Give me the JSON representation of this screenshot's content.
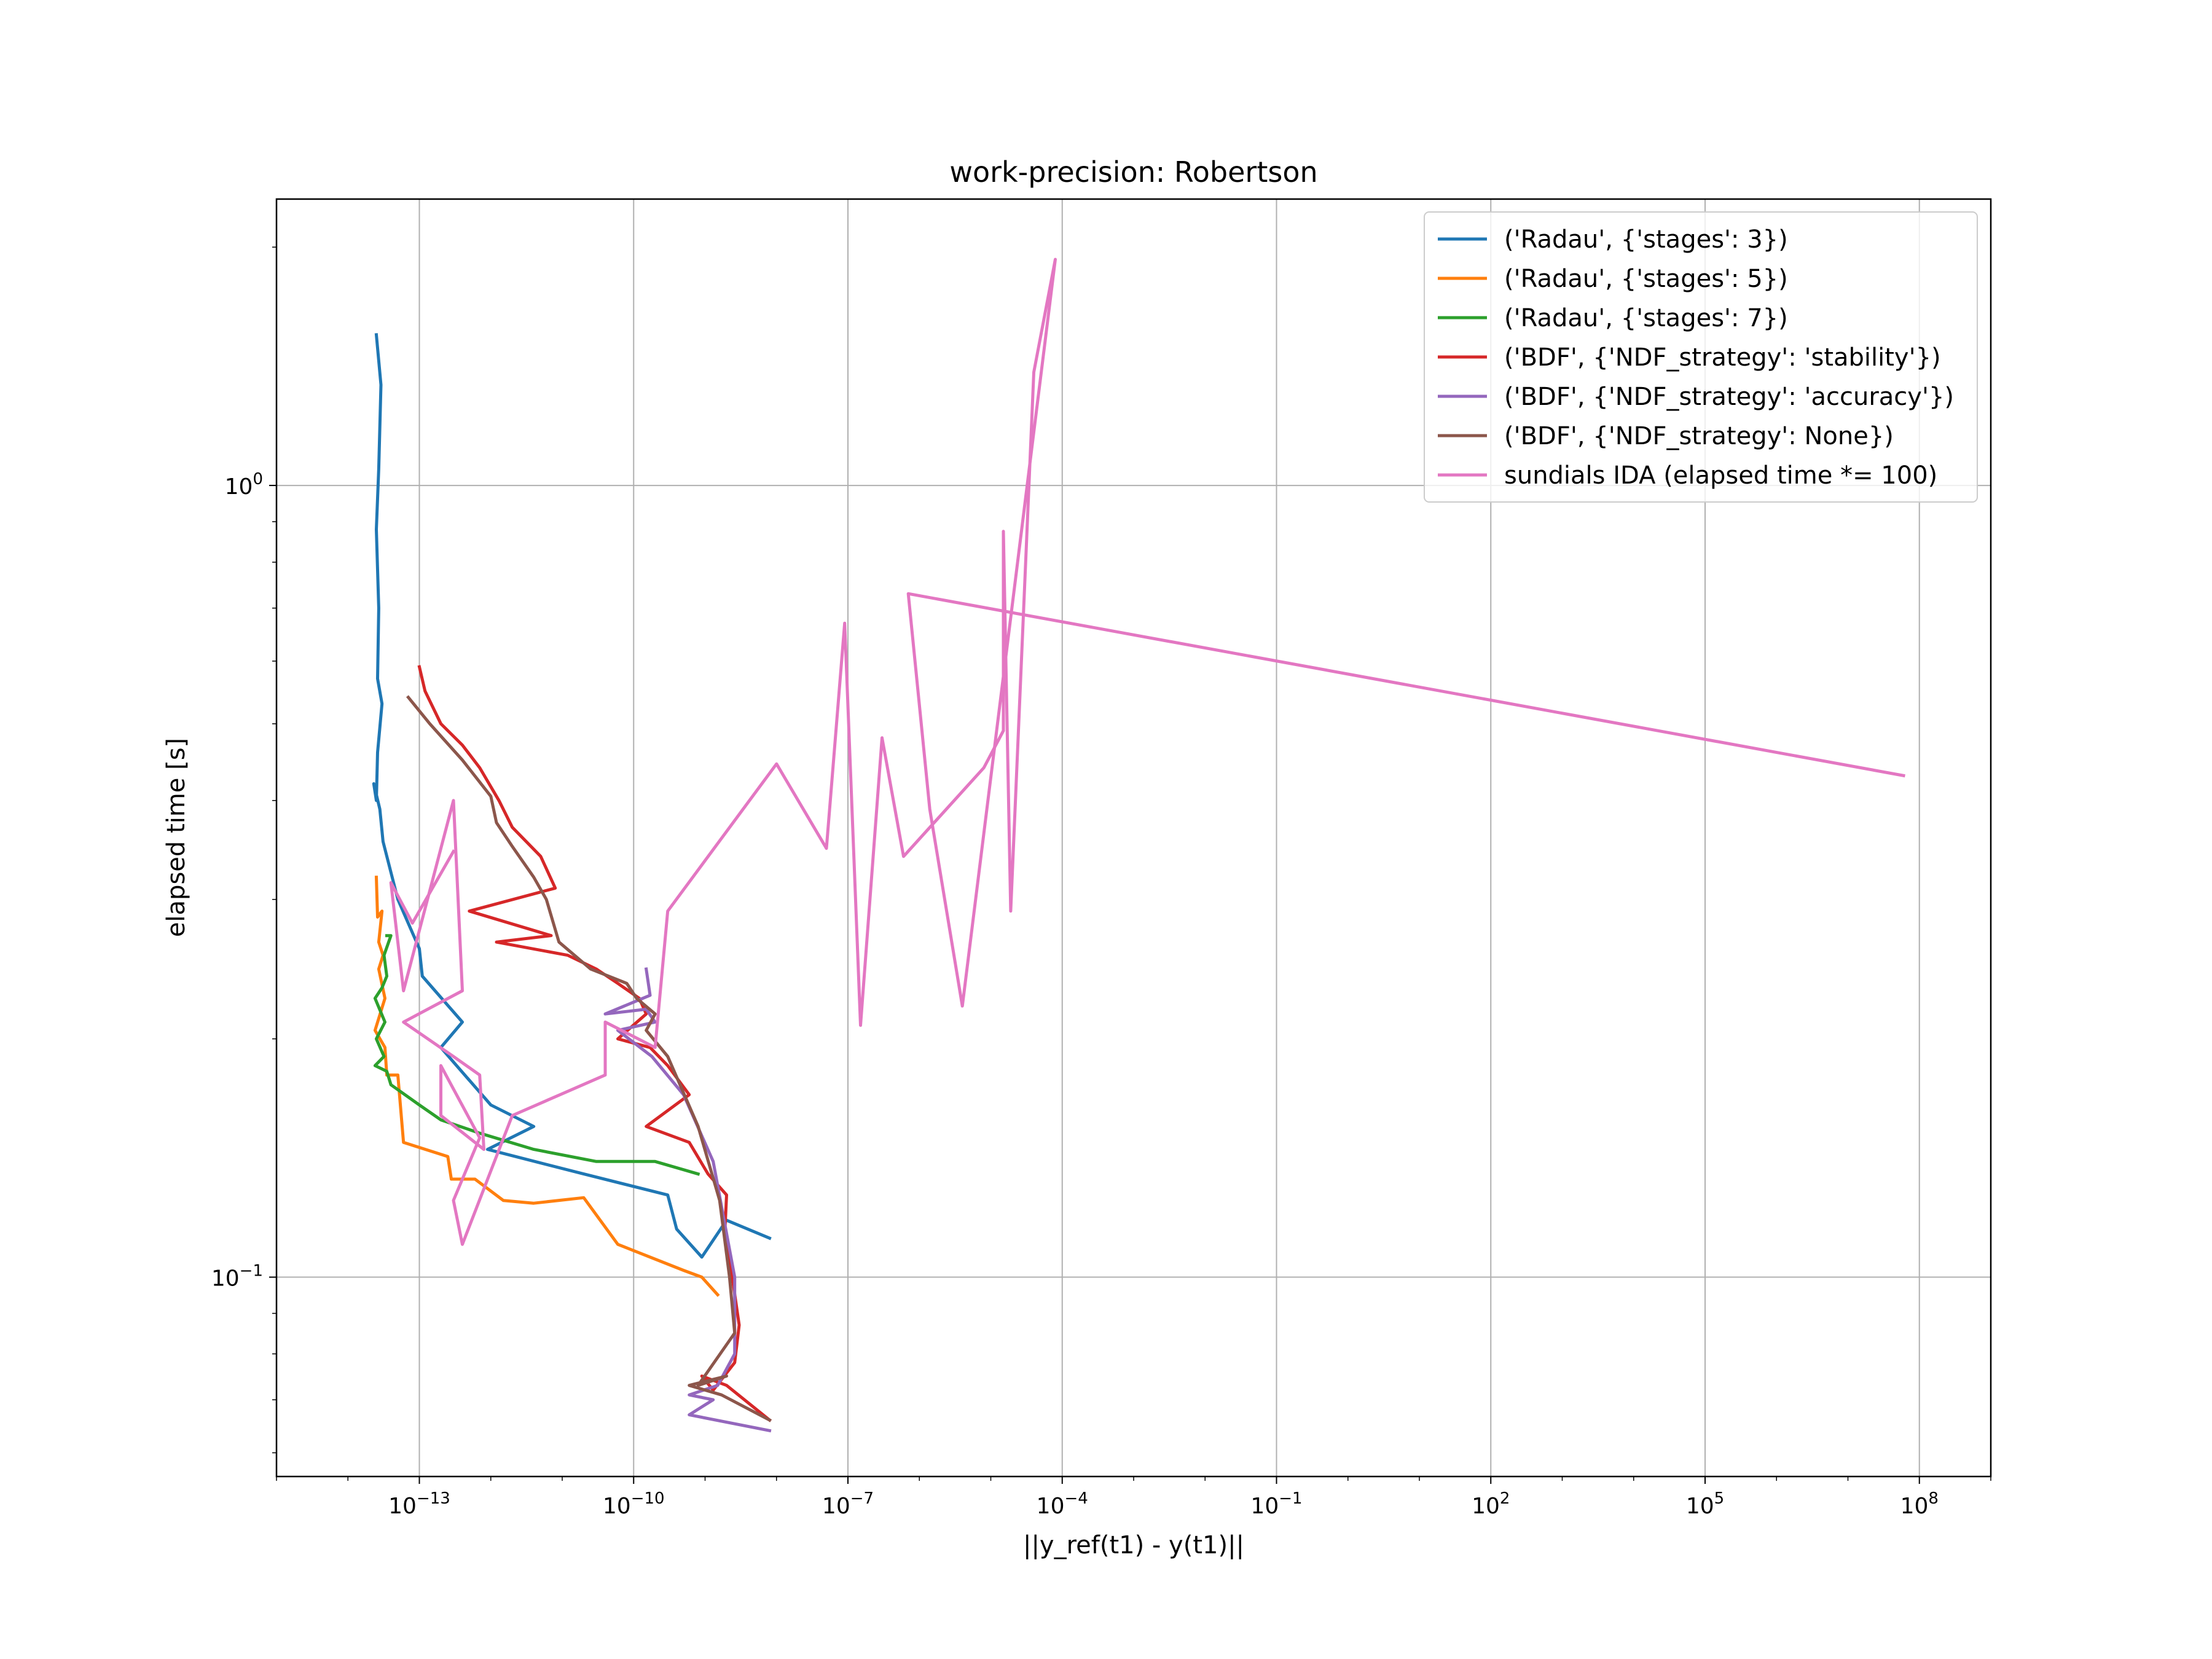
{
  "chart_data": {
    "type": "line",
    "title": "work-precision: Robertson",
    "xlabel": "||y_ref(t1) - y(t1)||",
    "ylabel": "elapsed time [s]",
    "xscale": "log",
    "yscale": "log",
    "xlim": [
      1e-15,
      1000000000.0
    ],
    "ylim": [
      0.056,
      2.3
    ],
    "grid": true,
    "legend_position": "top-right",
    "xticks": [
      {
        "value": 1e-13,
        "base": "10",
        "exp": "−13"
      },
      {
        "value": 1e-10,
        "base": "10",
        "exp": "−10"
      },
      {
        "value": 1e-07,
        "base": "10",
        "exp": "−7"
      },
      {
        "value": 0.0001,
        "base": "10",
        "exp": "−4"
      },
      {
        "value": 0.1,
        "base": "10",
        "exp": "−1"
      },
      {
        "value": 100.0,
        "base": "10",
        "exp": "2"
      },
      {
        "value": 100000.0,
        "base": "10",
        "exp": "5"
      },
      {
        "value": 100000000.0,
        "base": "10",
        "exp": "8"
      }
    ],
    "yticks": [
      {
        "value": 1,
        "base": "10",
        "exp": "0"
      },
      {
        "value": 0.1,
        "base": "10",
        "exp": "−1"
      }
    ],
    "series": [
      {
        "name": "('Radau', {'stages': 3})",
        "color": "#1f77b4",
        "points": [
          [
            2.5e-14,
            1.55
          ],
          [
            2.9e-14,
            1.34
          ],
          [
            2.7e-14,
            1.05
          ],
          [
            2.5e-14,
            0.88
          ],
          [
            2.7e-14,
            0.7
          ],
          [
            2.6e-14,
            0.57
          ],
          [
            3e-14,
            0.53
          ],
          [
            2.6e-14,
            0.46
          ],
          [
            2.5e-14,
            0.4
          ],
          [
            2.3e-14,
            0.42
          ],
          [
            2.8e-14,
            0.39
          ],
          [
            3.1e-14,
            0.355
          ],
          [
            5e-14,
            0.3
          ],
          [
            1e-13,
            0.26
          ],
          [
            1.1e-13,
            0.24
          ],
          [
            4e-13,
            0.21
          ],
          [
            2e-13,
            0.195
          ],
          [
            1e-12,
            0.165
          ],
          [
            4e-12,
            0.155
          ],
          [
            9e-13,
            0.145
          ],
          [
            2e-11,
            0.135
          ],
          [
            3e-10,
            0.127
          ],
          [
            4e-10,
            0.115
          ],
          [
            9e-10,
            0.106
          ],
          [
            2e-09,
            0.118
          ],
          [
            8e-09,
            0.112
          ]
        ]
      },
      {
        "name": "('Radau', {'stages': 5})",
        "color": "#ff7f0e",
        "points": [
          [
            2.5e-14,
            0.32
          ],
          [
            2.6e-14,
            0.285
          ],
          [
            3e-14,
            0.29
          ],
          [
            2.7e-14,
            0.265
          ],
          [
            3.1e-14,
            0.255
          ],
          [
            2.7e-14,
            0.245
          ],
          [
            3.3e-14,
            0.225
          ],
          [
            2.4e-14,
            0.205
          ],
          [
            3.3e-14,
            0.195
          ],
          [
            3.5e-14,
            0.18
          ],
          [
            5e-14,
            0.18
          ],
          [
            6e-14,
            0.148
          ],
          [
            2.5e-13,
            0.142
          ],
          [
            2.8e-13,
            0.133
          ],
          [
            6e-13,
            0.133
          ],
          [
            1.5e-12,
            0.125
          ],
          [
            4e-12,
            0.124
          ],
          [
            2e-11,
            0.126
          ],
          [
            6e-11,
            0.11
          ],
          [
            5e-10,
            0.102
          ],
          [
            9e-10,
            0.1
          ],
          [
            1.5e-09,
            0.095
          ]
        ]
      },
      {
        "name": "('Radau', {'stages': 7})",
        "color": "#2ca02c",
        "points": [
          [
            3.5e-14,
            0.27
          ],
          [
            4e-14,
            0.27
          ],
          [
            3.2e-14,
            0.255
          ],
          [
            3.5e-14,
            0.24
          ],
          [
            3e-14,
            0.232
          ],
          [
            2.4e-14,
            0.225
          ],
          [
            3.3e-14,
            0.21
          ],
          [
            2.5e-14,
            0.2
          ],
          [
            3.2e-14,
            0.19
          ],
          [
            2.4e-14,
            0.185
          ],
          [
            3.5e-14,
            0.182
          ],
          [
            4e-14,
            0.175
          ],
          [
            1e-13,
            0.165
          ],
          [
            2e-13,
            0.158
          ],
          [
            7e-13,
            0.152
          ],
          [
            4e-12,
            0.145
          ],
          [
            3e-11,
            0.14
          ],
          [
            2e-10,
            0.14
          ],
          [
            8e-10,
            0.135
          ]
        ]
      },
      {
        "name": "('BDF', {'NDF_strategy': 'stability'})",
        "color": "#d62728",
        "points": [
          [
            1e-13,
            0.59
          ],
          [
            1.2e-13,
            0.55
          ],
          [
            2e-13,
            0.5
          ],
          [
            4e-13,
            0.47
          ],
          [
            7e-13,
            0.44
          ],
          [
            1.3e-12,
            0.4
          ],
          [
            2e-12,
            0.37
          ],
          [
            5e-12,
            0.34
          ],
          [
            8e-12,
            0.31
          ],
          [
            5e-13,
            0.29
          ],
          [
            7e-12,
            0.27
          ],
          [
            1.2e-12,
            0.265
          ],
          [
            1.2e-11,
            0.255
          ],
          [
            3e-11,
            0.245
          ],
          [
            6e-11,
            0.235
          ],
          [
            1.2e-10,
            0.225
          ],
          [
            1.5e-10,
            0.215
          ],
          [
            6e-11,
            0.2
          ],
          [
            1.7e-10,
            0.195
          ],
          [
            3e-10,
            0.185
          ],
          [
            6e-10,
            0.17
          ],
          [
            1.5e-10,
            0.155
          ],
          [
            6e-10,
            0.148
          ],
          [
            1.1e-09,
            0.135
          ],
          [
            2e-09,
            0.127
          ],
          [
            1.9e-09,
            0.115
          ],
          [
            2.4e-09,
            0.1
          ],
          [
            3e-09,
            0.087
          ],
          [
            2.6e-09,
            0.078
          ],
          [
            1.3e-09,
            0.072
          ],
          [
            9e-10,
            0.075
          ],
          [
            2e-09,
            0.073
          ],
          [
            8e-09,
            0.066
          ]
        ]
      },
      {
        "name": "('BDF', {'NDF_strategy': 'accuracy'})",
        "color": "#9467bd",
        "points": [
          [
            1.5e-10,
            0.245
          ],
          [
            1.7e-10,
            0.227
          ],
          [
            4e-11,
            0.215
          ],
          [
            1.5e-10,
            0.218
          ],
          [
            2e-10,
            0.21
          ],
          [
            6e-11,
            0.205
          ],
          [
            1.8e-10,
            0.19
          ],
          [
            5e-10,
            0.17
          ],
          [
            1.3e-09,
            0.14
          ],
          [
            2.6e-09,
            0.1
          ],
          [
            2.6e-09,
            0.08
          ],
          [
            1.5e-09,
            0.073
          ],
          [
            6e-10,
            0.071
          ],
          [
            1.3e-09,
            0.07
          ],
          [
            6e-10,
            0.067
          ],
          [
            8e-09,
            0.064
          ]
        ]
      },
      {
        "name": "('BDF', {'NDF_strategy': None})",
        "color": "#8c564b",
        "points": [
          [
            7e-14,
            0.54
          ],
          [
            1.4e-13,
            0.5
          ],
          [
            4e-13,
            0.45
          ],
          [
            1e-12,
            0.405
          ],
          [
            1.2e-12,
            0.375
          ],
          [
            2e-12,
            0.35
          ],
          [
            4e-12,
            0.32
          ],
          [
            6e-12,
            0.3
          ],
          [
            9e-12,
            0.265
          ],
          [
            2.5e-11,
            0.245
          ],
          [
            8e-11,
            0.235
          ],
          [
            1.1e-10,
            0.225
          ],
          [
            2e-10,
            0.215
          ],
          [
            1.5e-10,
            0.205
          ],
          [
            3e-10,
            0.19
          ],
          [
            8e-10,
            0.155
          ],
          [
            1.6e-09,
            0.125
          ],
          [
            2.2e-09,
            0.1
          ],
          [
            2.6e-09,
            0.085
          ],
          [
            8e-10,
            0.073
          ],
          [
            2e-09,
            0.075
          ],
          [
            6e-10,
            0.073
          ],
          [
            1.7e-09,
            0.071
          ],
          [
            8e-09,
            0.066
          ]
        ]
      },
      {
        "name": "sundials IDA (elapsed time *= 100)",
        "color": "#e377c2",
        "points": [
          [
            3e-13,
            0.345
          ],
          [
            8e-14,
            0.28
          ],
          [
            4e-14,
            0.315
          ],
          [
            6e-14,
            0.23
          ],
          [
            3e-13,
            0.4
          ],
          [
            3e-13,
            0.4
          ],
          [
            4e-13,
            0.23
          ],
          [
            6e-14,
            0.21
          ],
          [
            3e-13,
            0.19
          ],
          [
            7e-13,
            0.18
          ],
          [
            8e-13,
            0.145
          ],
          [
            2e-13,
            0.16
          ],
          [
            2e-13,
            0.185
          ],
          [
            7e-13,
            0.15
          ],
          [
            3e-13,
            0.125
          ],
          [
            4e-13,
            0.11
          ],
          [
            2e-12,
            0.16
          ],
          [
            4e-11,
            0.18
          ],
          [
            4e-11,
            0.21
          ],
          [
            2e-10,
            0.195
          ],
          [
            3e-10,
            0.29
          ],
          [
            1e-08,
            0.445
          ],
          [
            5e-08,
            0.348
          ],
          [
            9e-08,
            0.67
          ],
          [
            1.5e-07,
            0.208
          ],
          [
            3e-07,
            0.48
          ],
          [
            6e-07,
            0.34
          ],
          [
            8e-06,
            0.44
          ],
          [
            1.5e-05,
            0.49
          ],
          [
            1.5e-05,
            0.875
          ],
          [
            1.9e-05,
            0.29
          ],
          [
            4e-05,
            1.39
          ],
          [
            8e-05,
            1.93
          ],
          [
            4e-06,
            0.22
          ],
          [
            1.4e-06,
            0.39
          ],
          [
            7e-07,
            0.73
          ],
          [
            60000000.0,
            0.43
          ]
        ]
      }
    ]
  }
}
